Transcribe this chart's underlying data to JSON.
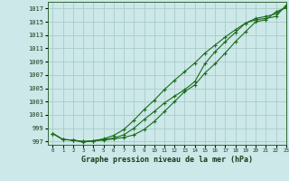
{
  "xlabel": "Graphe pression niveau de la mer (hPa)",
  "xlim": [
    -0.5,
    23
  ],
  "ylim": [
    996.5,
    1018
  ],
  "yticks": [
    997,
    999,
    1001,
    1003,
    1005,
    1007,
    1009,
    1011,
    1013,
    1015,
    1017
  ],
  "xticks": [
    0,
    1,
    2,
    3,
    4,
    5,
    6,
    7,
    8,
    9,
    10,
    11,
    12,
    13,
    14,
    15,
    16,
    17,
    18,
    19,
    20,
    21,
    22,
    23
  ],
  "bg_color": "#cce8e8",
  "grid_color": "#aacccc",
  "line_color": "#1a6b1a",
  "line1": [
    998.2,
    997.3,
    997.2,
    996.9,
    997.1,
    997.2,
    997.4,
    997.6,
    998.0,
    998.8,
    1000.0,
    1001.5,
    1003.0,
    1004.5,
    1005.5,
    1007.3,
    1008.7,
    1010.3,
    1012.0,
    1013.5,
    1015.0,
    1015.3,
    1016.5,
    1017.1
  ],
  "line2": [
    998.2,
    997.3,
    997.2,
    997.0,
    997.1,
    997.3,
    997.5,
    998.0,
    999.0,
    1000.3,
    1001.5,
    1002.8,
    1003.8,
    1004.8,
    1006.0,
    1008.7,
    1010.5,
    1012.0,
    1013.4,
    1014.8,
    1015.5,
    1015.8,
    1016.2,
    1017.3
  ],
  "line3": [
    998.2,
    997.3,
    997.2,
    997.0,
    997.1,
    997.4,
    997.9,
    998.8,
    1000.2,
    1001.8,
    1003.2,
    1004.8,
    1006.2,
    1007.5,
    1008.8,
    1010.3,
    1011.5,
    1012.7,
    1013.8,
    1014.8,
    1015.3,
    1015.5,
    1015.8,
    1017.5
  ]
}
